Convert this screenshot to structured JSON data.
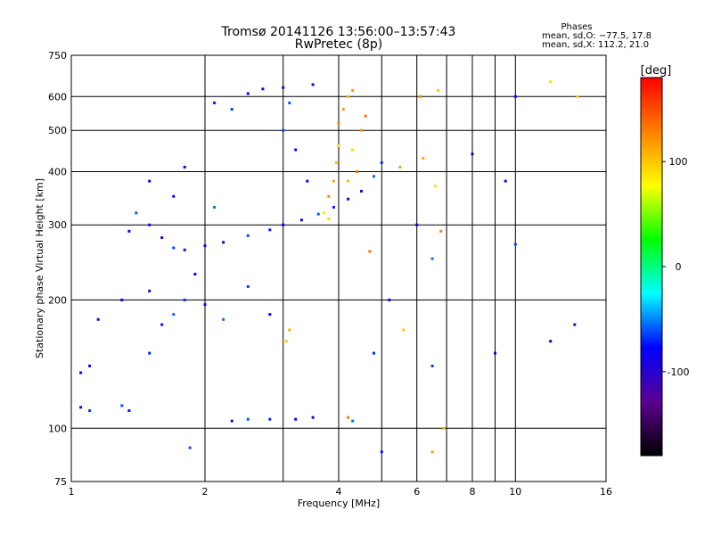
{
  "chart_data": {
    "type": "scatter",
    "title": "Tromsø 20141126 13:56:00–13:57:43",
    "subtitle": "RwPretec (8p)",
    "xlabel": "Frequency [MHz]",
    "ylabel": "Stationary phase Virtual Height [km]",
    "x_scale": "log",
    "y_scale": "log",
    "xlim": [
      1,
      16
    ],
    "ylim": [
      75,
      750
    ],
    "x_ticks": [
      1,
      2,
      4,
      6,
      8,
      10,
      16
    ],
    "y_ticks": [
      75,
      100,
      200,
      300,
      400,
      500,
      600,
      750
    ],
    "x_minor_gridlines": [
      3,
      5,
      7,
      9
    ],
    "grid": true,
    "phase_box": {
      "title": "Phases",
      "line_o": "mean, sd,O: −77.5, 17.8",
      "line_x": "mean, sd,X: 112.2, 21.0"
    },
    "colorbar": {
      "label": "[deg]",
      "range": [
        -180,
        180
      ],
      "ticks": [
        100,
        0,
        -100
      ],
      "colors": [
        "#000000",
        "#5a0090",
        "#0000ff",
        "#00ffff",
        "#00ff00",
        "#ffff00",
        "#ff8000",
        "#ff0000"
      ]
    },
    "series": [
      {
        "trace": "O",
        "phase_mean": -77.5,
        "points": [
          [
            1.05,
            112
          ],
          [
            1.1,
            110
          ],
          [
            1.05,
            135
          ],
          [
            1.1,
            140
          ],
          [
            1.15,
            180
          ],
          [
            1.3,
            113
          ],
          [
            1.35,
            110
          ],
          [
            1.3,
            200
          ],
          [
            1.35,
            290
          ],
          [
            1.4,
            320
          ],
          [
            1.5,
            150
          ],
          [
            1.5,
            210
          ],
          [
            1.6,
            175
          ],
          [
            1.7,
            185
          ],
          [
            1.8,
            200
          ],
          [
            1.9,
            230
          ],
          [
            2.0,
            195
          ],
          [
            2.2,
            180
          ],
          [
            2.5,
            215
          ],
          [
            2.8,
            185
          ],
          [
            1.5,
            300
          ],
          [
            1.6,
            280
          ],
          [
            1.7,
            265
          ],
          [
            1.8,
            262
          ],
          [
            2.0,
            268
          ],
          [
            2.2,
            273
          ],
          [
            2.5,
            283
          ],
          [
            2.8,
            292
          ],
          [
            3.0,
            300
          ],
          [
            3.3,
            308
          ],
          [
            3.6,
            318
          ],
          [
            3.9,
            330
          ],
          [
            4.2,
            345
          ],
          [
            4.5,
            360
          ],
          [
            4.8,
            390
          ],
          [
            5.0,
            420
          ],
          [
            1.5,
            380
          ],
          [
            1.7,
            350
          ],
          [
            2.1,
            330
          ],
          [
            2.3,
            560
          ],
          [
            2.5,
            610
          ],
          [
            2.7,
            625
          ],
          [
            3.0,
            630
          ],
          [
            3.0,
            500
          ],
          [
            3.2,
            450
          ],
          [
            3.4,
            380
          ],
          [
            3.5,
            640
          ],
          [
            3.1,
            580
          ],
          [
            2.1,
            580
          ],
          [
            1.8,
            410
          ],
          [
            2.3,
            104
          ],
          [
            2.5,
            105
          ],
          [
            2.8,
            105
          ],
          [
            3.2,
            105
          ],
          [
            3.5,
            106
          ],
          [
            4.3,
            104
          ],
          [
            4.8,
            150
          ],
          [
            5.2,
            200
          ],
          [
            6.0,
            300
          ],
          [
            6.5,
            250
          ],
          [
            6.5,
            140
          ],
          [
            8.0,
            440
          ],
          [
            9.0,
            150
          ],
          [
            9.5,
            380
          ],
          [
            10.0,
            270
          ],
          [
            10.0,
            600
          ],
          [
            12.0,
            160
          ],
          [
            13.6,
            175
          ],
          [
            1.85,
            90
          ],
          [
            5.0,
            88
          ]
        ]
      },
      {
        "trace": "X",
        "phase_mean": 112.2,
        "points": [
          [
            3.7,
            320
          ],
          [
            3.8,
            350
          ],
          [
            3.9,
            380
          ],
          [
            3.95,
            420
          ],
          [
            4.0,
            460
          ],
          [
            4.0,
            520
          ],
          [
            4.1,
            560
          ],
          [
            4.2,
            600
          ],
          [
            4.3,
            450
          ],
          [
            4.4,
            400
          ],
          [
            4.5,
            500
          ],
          [
            4.2,
            380
          ],
          [
            3.8,
            310
          ],
          [
            4.6,
            540
          ],
          [
            4.3,
            620
          ],
          [
            3.1,
            170
          ],
          [
            3.05,
            160
          ],
          [
            4.7,
            260
          ],
          [
            6.1,
            600
          ],
          [
            6.2,
            430
          ],
          [
            6.7,
            620
          ],
          [
            6.6,
            370
          ],
          [
            6.8,
            290
          ],
          [
            6.5,
            88
          ],
          [
            5.6,
            170
          ],
          [
            12.0,
            650
          ],
          [
            4.2,
            106
          ],
          [
            5.5,
            410
          ],
          [
            6.9,
            100
          ],
          [
            13.8,
            600
          ]
        ]
      }
    ]
  }
}
